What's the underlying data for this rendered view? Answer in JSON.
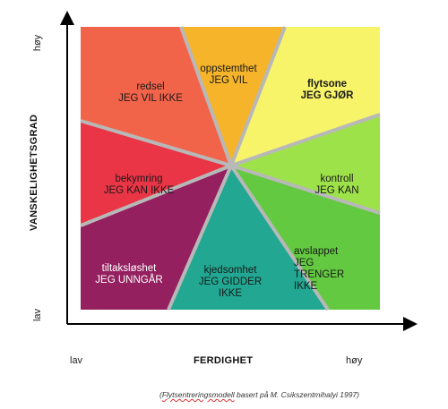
{
  "axes": {
    "y_title": "VANSKELIGHETSGRAD",
    "y_high": "høy",
    "y_low": "lav",
    "x_title": "FERDIGHET",
    "x_low": "lav",
    "x_high": "høy"
  },
  "segments": [
    {
      "id": "oppstemthet",
      "line1": "oppstemthet",
      "line2": "JEG VIL",
      "color": "#f5b42a"
    },
    {
      "id": "flytsone",
      "line1": "flytsone",
      "line2": "JEG GJØR",
      "color": "#f8f46a"
    },
    {
      "id": "kontroll",
      "line1": "kontroll",
      "line2": "JEG KAN",
      "color": "#9ee24a"
    },
    {
      "id": "avslappet",
      "line1": "avslappet",
      "line2": "JEG\nTRENGER\nIKKE",
      "color": "#63c940"
    },
    {
      "id": "kjedsomhet",
      "line1": "kjedsomhet",
      "line2": "JEG GIDDER\nIKKE",
      "color": "#21a792"
    },
    {
      "id": "tiltaksloshet",
      "line1": "tiltaksløshet",
      "line2": "JEG UNNGÅR",
      "color": "#94205f"
    },
    {
      "id": "bekymring",
      "line1": "bekymring",
      "line2": "JEG KAN IKKE",
      "color": "#ea3546"
    },
    {
      "id": "redsel",
      "line1": "redsel",
      "line2": "JEG VIL IKKE",
      "color": "#f2644a"
    }
  ],
  "caption": {
    "prefix": "(",
    "underlined": "Flytsentreringsmodell",
    "rest": " basert på M. Csikszentmihalyi 1997)"
  }
}
